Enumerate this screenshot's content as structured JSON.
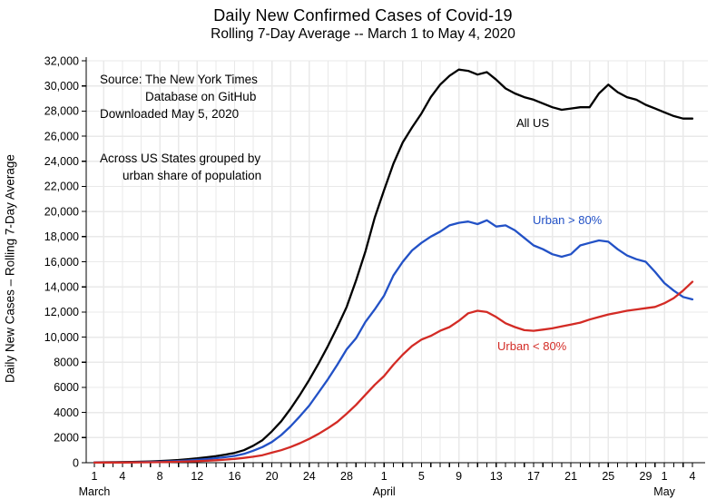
{
  "title": "Daily New Confirmed Cases of Covid-19",
  "subtitle": "Rolling 7-Day Average -- March 1 to May 4, 2020",
  "y_axis_title": "Daily New Cases – Rolling 7-Day Average",
  "annotations": {
    "source_line1": "Source: The New York Times",
    "source_line2": "Database on GitHub",
    "source_line3": "Downloaded May 5, 2020",
    "group_line1": "Across US States grouped by",
    "group_line2": "urban share of population"
  },
  "chart_data": {
    "type": "line",
    "title": "Daily New Confirmed Cases of Covid-19",
    "subtitle": "Rolling 7-Day Average -- March 1 to May 4, 2020",
    "ylabel": "Daily New Cases – Rolling 7-Day Average",
    "xlabel": "",
    "ylim": [
      0,
      32000
    ],
    "x_unit": "days, March 1 to May 4, 2020 (one value per day)",
    "grid": true,
    "colors": {
      "all_us": "#000000",
      "urban_gt80": "#2251c6",
      "urban_lt80": "#d32b25",
      "gridline": "#e9e9e9",
      "axis": "#000000"
    },
    "y_ticks": [
      {
        "value": 0,
        "label": "0"
      },
      {
        "value": 2000,
        "label": "2000"
      },
      {
        "value": 4000,
        "label": "4000"
      },
      {
        "value": 6000,
        "label": "6000"
      },
      {
        "value": 8000,
        "label": "8000"
      },
      {
        "value": 10000,
        "label": "10,000"
      },
      {
        "value": 12000,
        "label": "12,000"
      },
      {
        "value": 14000,
        "label": "14,000"
      },
      {
        "value": 16000,
        "label": "16,000"
      },
      {
        "value": 18000,
        "label": "18,000"
      },
      {
        "value": 20000,
        "label": "20,000"
      },
      {
        "value": 22000,
        "label": "22,000"
      },
      {
        "value": 24000,
        "label": "24,000"
      },
      {
        "value": 26000,
        "label": "26,000"
      },
      {
        "value": 28000,
        "label": "28,000"
      },
      {
        "value": 30000,
        "label": "30,000"
      },
      {
        "value": 32000,
        "label": "32,000"
      }
    ],
    "x_ticks": [
      {
        "day": 0,
        "label": "1"
      },
      {
        "day": 3,
        "label": "4"
      },
      {
        "day": 7,
        "label": "8"
      },
      {
        "day": 11,
        "label": "12"
      },
      {
        "day": 15,
        "label": "16"
      },
      {
        "day": 19,
        "label": "20"
      },
      {
        "day": 23,
        "label": "24"
      },
      {
        "day": 27,
        "label": "28"
      },
      {
        "day": 31,
        "label": "1"
      },
      {
        "day": 35,
        "label": "5"
      },
      {
        "day": 39,
        "label": "9"
      },
      {
        "day": 43,
        "label": "13"
      },
      {
        "day": 47,
        "label": "17"
      },
      {
        "day": 51,
        "label": "21"
      },
      {
        "day": 55,
        "label": "25"
      },
      {
        "day": 59,
        "label": "29"
      },
      {
        "day": 61,
        "label": "1"
      },
      {
        "day": 64,
        "label": "4"
      }
    ],
    "month_labels": [
      {
        "day": 0,
        "label": "March"
      },
      {
        "day": 31,
        "label": "April"
      },
      {
        "day": 61,
        "label": "May"
      }
    ],
    "series": [
      {
        "name": "All US",
        "color": "#000000",
        "values": [
          30,
          35,
          40,
          50,
          60,
          80,
          100,
          130,
          170,
          220,
          280,
          350,
          430,
          520,
          640,
          780,
          1000,
          1350,
          1800,
          2500,
          3300,
          4300,
          5400,
          6600,
          7900,
          9300,
          10800,
          12400,
          14500,
          16800,
          19500,
          21700,
          23800,
          25500,
          26700,
          27800,
          29100,
          30100,
          30800,
          31300,
          31200,
          30900,
          31100,
          30500,
          29800,
          29400,
          29100,
          28900,
          28600,
          28300,
          28100,
          28200,
          28300,
          28300,
          29400,
          30100,
          29500,
          29100,
          28900,
          28500,
          28200,
          27900,
          27600,
          27400,
          27400
        ]
      },
      {
        "name": "Urban > 80%",
        "color": "#2251c6",
        "values": [
          15,
          18,
          22,
          28,
          35,
          45,
          60,
          80,
          105,
          140,
          180,
          230,
          290,
          360,
          440,
          540,
          700,
          950,
          1250,
          1650,
          2200,
          2900,
          3700,
          4550,
          5600,
          6650,
          7800,
          9030,
          9900,
          11200,
          12200,
          13300,
          14900,
          16000,
          16900,
          17500,
          18000,
          18400,
          18900,
          19100,
          19200,
          19000,
          19300,
          18800,
          18900,
          18500,
          17900,
          17300,
          17000,
          16600,
          16400,
          16600,
          17300,
          17500,
          17700,
          17600,
          17000,
          16500,
          16200,
          16000,
          15200,
          14300,
          13700,
          13200,
          13000
        ]
      },
      {
        "name": "Urban < 80%",
        "color": "#d32b25",
        "values": [
          10,
          12,
          15,
          18,
          22,
          28,
          35,
          45,
          60,
          80,
          100,
          125,
          155,
          195,
          245,
          300,
          380,
          480,
          600,
          800,
          1000,
          1250,
          1550,
          1900,
          2300,
          2750,
          3250,
          3900,
          4600,
          5400,
          6200,
          6900,
          7800,
          8600,
          9300,
          9800,
          10100,
          10500,
          10800,
          11300,
          11900,
          12100,
          12000,
          11600,
          11100,
          10800,
          10550,
          10500,
          10600,
          10700,
          10850,
          11000,
          11150,
          11400,
          11600,
          11800,
          11950,
          12100,
          12200,
          12300,
          12400,
          12700,
          13100,
          13700,
          14400
        ]
      }
    ],
    "legend_position": "inline-curve-labels"
  }
}
